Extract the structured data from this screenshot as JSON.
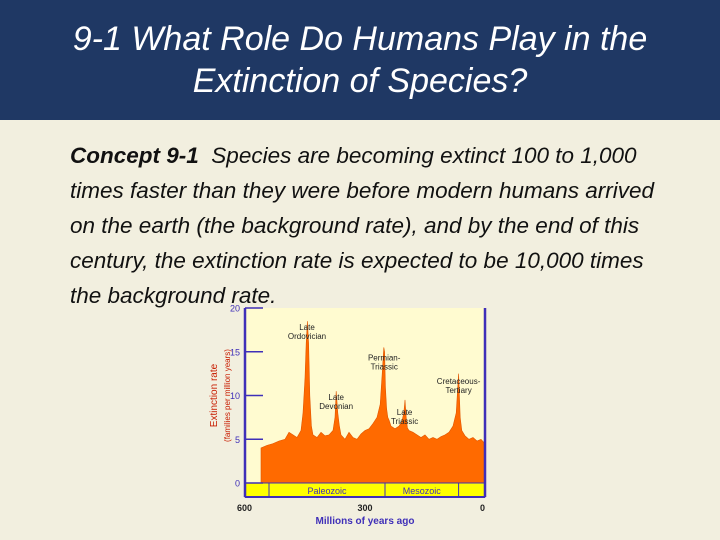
{
  "title": {
    "line1": "9-1 What Role Do Humans Play in the",
    "line2": "Extinction of Species?"
  },
  "concept": {
    "label": "Concept 9-1",
    "text": "Species are becoming extinct 100 to 1,000 times faster than they were before modern humans arrived on the earth (the background rate), and by the end of this century, the extinction rate is expected to be 10,000 times the background rate."
  },
  "colors": {
    "title_bg": "#1f3864",
    "slide_bg": "#f2efdf",
    "plot_bg": "#fffbd0",
    "fill": "#ff6a00",
    "axis": "#3f2fb8",
    "era_band": "#ffff00",
    "tick_text": "#3f2fb8",
    "label_text": "#c81c00"
  },
  "chart_data": {
    "type": "area",
    "ylabel": "Extinction rate",
    "ylabel_sub": "(families per million years)",
    "xlabel": "Millions of years ago",
    "yticks": [
      0,
      5,
      10,
      15,
      20
    ],
    "xticks": [
      600,
      300,
      0
    ],
    "xlim": [
      600,
      0
    ],
    "ylim": [
      0,
      20
    ],
    "eras": [
      {
        "name": "Paleozoic",
        "from": 540,
        "to": 250
      },
      {
        "name": "Mesozoic",
        "from": 250,
        "to": 66
      }
    ],
    "annotations": [
      {
        "line1": "Late",
        "line2": "Ordovician",
        "x": 445,
        "y": 17.5
      },
      {
        "line1": "Permian-",
        "line2": "Triassic",
        "x": 252,
        "y": 14
      },
      {
        "line1": "Late",
        "line2": "Devonian",
        "x": 372,
        "y": 9.5
      },
      {
        "line1": "Cretaceous-",
        "line2": "Tertiary",
        "x": 66,
        "y": 11.3
      },
      {
        "line1": "Late",
        "line2": "Triassic",
        "x": 201,
        "y": 7.8
      }
    ],
    "series": [
      {
        "x": [
          560,
          545,
          530,
          515,
          500,
          490,
          480,
          470,
          460,
          455,
          450,
          447,
          444,
          441,
          438,
          434,
          430,
          420,
          410,
          400,
          390,
          380,
          375,
          372,
          368,
          364,
          360,
          350,
          340,
          330,
          320,
          310,
          300,
          290,
          280,
          270,
          262,
          257,
          253,
          251,
          249,
          246,
          243,
          240,
          235,
          225,
          215,
          208,
          203,
          200,
          197,
          194,
          190,
          180,
          170,
          160,
          150,
          140,
          130,
          120,
          110,
          100,
          90,
          80,
          72,
          68,
          66,
          64,
          62,
          58,
          50,
          40,
          30,
          20,
          10,
          0
        ],
        "y": [
          4.0,
          4.3,
          4.5,
          4.8,
          5.0,
          5.8,
          5.5,
          5.2,
          6.0,
          8.0,
          12.0,
          16.0,
          18.5,
          16.0,
          10.0,
          6.5,
          5.5,
          5.2,
          5.8,
          5.4,
          5.5,
          6.0,
          7.5,
          10.5,
          8.0,
          6.5,
          5.5,
          5.0,
          5.8,
          5.2,
          5.0,
          5.6,
          6.0,
          6.2,
          6.8,
          7.5,
          9.0,
          12.5,
          15.5,
          15.0,
          11.0,
          8.5,
          7.5,
          7.2,
          6.5,
          6.2,
          6.5,
          7.0,
          8.0,
          9.5,
          7.5,
          6.3,
          6.0,
          5.8,
          5.5,
          5.2,
          5.5,
          5.0,
          5.2,
          5.0,
          5.3,
          5.5,
          5.8,
          6.5,
          8.0,
          11.0,
          12.5,
          10.0,
          7.5,
          6.0,
          5.4,
          5.0,
          5.2,
          4.8,
          5.0,
          4.5
        ]
      }
    ]
  }
}
